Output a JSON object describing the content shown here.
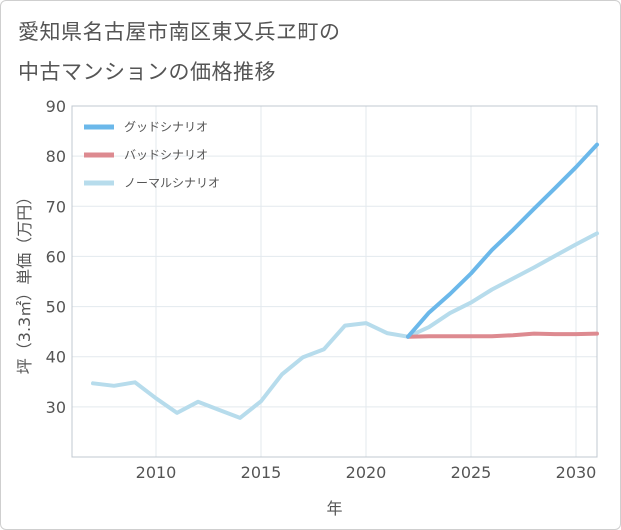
{
  "title_line1": "愛知県名古屋市南区東又兵ヱ町の",
  "title_line2": "中古マンションの価格推移",
  "chart_data": {
    "type": "line",
    "title": "愛知県名古屋市南区東又兵ヱ町の中古マンションの価格推移",
    "xlabel": "年",
    "ylabel": "坪（3.3㎡）単価（万円）",
    "xlim": [
      2006,
      2031
    ],
    "ylim": [
      20,
      90
    ],
    "xticks": [
      2010,
      2015,
      2020,
      2025,
      2030
    ],
    "yticks": [
      30,
      40,
      50,
      60,
      70,
      80,
      90
    ],
    "grid": true,
    "legend_position": "top-left",
    "series": [
      {
        "name": "グッドシナリオ",
        "color": "#6bb8ea",
        "x": [
          2022,
          2023,
          2024,
          2025,
          2026,
          2027,
          2028,
          2029,
          2030,
          2031
        ],
        "values": [
          44,
          48.8,
          52.5,
          56.6,
          61.3,
          65.3,
          69.5,
          73.6,
          77.8,
          82.3
        ]
      },
      {
        "name": "バッドシナリオ",
        "color": "#dd8a90",
        "x": [
          2022,
          2023,
          2024,
          2025,
          2026,
          2027,
          2028,
          2029,
          2030,
          2031
        ],
        "values": [
          44,
          44.1,
          44.1,
          44.1,
          44.1,
          44.3,
          44.6,
          44.5,
          44.5,
          44.6
        ]
      },
      {
        "name": "ノーマルシナリオ",
        "color": "#b7dcec",
        "x": [
          2007,
          2008,
          2009,
          2010,
          2011,
          2012,
          2013,
          2014,
          2015,
          2016,
          2017,
          2018,
          2019,
          2020,
          2021,
          2022,
          2023,
          2024,
          2025,
          2026,
          2027,
          2028,
          2029,
          2030,
          2031
        ],
        "values": [
          34.7,
          34.2,
          34.9,
          31.7,
          28.8,
          31.0,
          29.4,
          27.8,
          31.1,
          36.5,
          39.9,
          41.5,
          46.2,
          46.7,
          44.7,
          44.0,
          45.9,
          48.7,
          50.8,
          53.4,
          55.6,
          57.8,
          60.1,
          62.4,
          64.6
        ]
      }
    ]
  }
}
